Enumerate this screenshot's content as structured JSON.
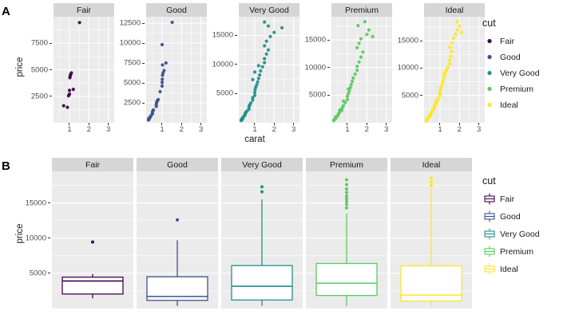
{
  "chart_data": {
    "colors": {
      "Fair": "#440154",
      "Good": "#3B528B",
      "Very Good": "#21908C",
      "Premium": "#5DC863",
      "Ideal": "#FDE725"
    },
    "panel_a": {
      "label": "A",
      "type": "scatter",
      "xlabel": "carat",
      "ylabel": "price",
      "x_ticks": [
        1,
        2,
        3
      ],
      "x_minor": [
        0.5,
        1.5,
        2.5
      ],
      "x_domain": [
        0.18,
        3.3
      ],
      "facets": [
        {
          "cut": "Fair",
          "y_ticks": [
            2500,
            5000,
            7500
          ],
          "y_domain": [
            0,
            10000
          ],
          "points": [
            [
              0.7,
              1600
            ],
            [
              0.9,
              1450
            ],
            [
              0.95,
              2550
            ],
            [
              1.0,
              2700
            ],
            [
              1.0,
              3050
            ],
            [
              1.02,
              4250
            ],
            [
              1.04,
              4400
            ],
            [
              1.06,
              4550
            ],
            [
              1.1,
              4700
            ],
            [
              1.2,
              3150
            ],
            [
              1.52,
              9450
            ]
          ]
        },
        {
          "cut": "Good",
          "y_ticks": [
            2500,
            5000,
            7500,
            10000,
            12500
          ],
          "y_domain": [
            0,
            13300
          ],
          "points": [
            [
              0.3,
              350
            ],
            [
              0.31,
              450
            ],
            [
              0.32,
              550
            ],
            [
              0.33,
              420
            ],
            [
              0.35,
              600
            ],
            [
              0.4,
              720
            ],
            [
              0.42,
              850
            ],
            [
              0.5,
              1100
            ],
            [
              0.5,
              1300
            ],
            [
              0.52,
              1450
            ],
            [
              0.55,
              1600
            ],
            [
              0.7,
              2050
            ],
            [
              0.7,
              2300
            ],
            [
              0.72,
              2550
            ],
            [
              0.75,
              2750
            ],
            [
              0.8,
              2900
            ],
            [
              0.9,
              3900
            ],
            [
              1.0,
              4600
            ],
            [
              1.0,
              5050
            ],
            [
              1.01,
              5450
            ],
            [
              1.02,
              5950
            ],
            [
              1.05,
              6250
            ],
            [
              1.1,
              6550
            ],
            [
              1.02,
              7250
            ],
            [
              1.2,
              7500
            ],
            [
              1.0,
              9800
            ],
            [
              1.52,
              12600
            ]
          ]
        },
        {
          "cut": "Very Good",
          "y_ticks": [
            5000,
            10000,
            15000
          ],
          "y_domain": [
            0,
            18200
          ],
          "points": [
            [
              0.3,
              400
            ],
            [
              0.31,
              500
            ],
            [
              0.32,
              430
            ],
            [
              0.33,
              600
            ],
            [
              0.35,
              700
            ],
            [
              0.36,
              560
            ],
            [
              0.4,
              820
            ],
            [
              0.4,
              950
            ],
            [
              0.42,
              1060
            ],
            [
              0.5,
              1300
            ],
            [
              0.5,
              1500
            ],
            [
              0.52,
              1660
            ],
            [
              0.55,
              1800
            ],
            [
              0.6,
              2000
            ],
            [
              0.7,
              2300
            ],
            [
              0.7,
              2600
            ],
            [
              0.72,
              2900
            ],
            [
              0.75,
              3100
            ],
            [
              0.8,
              3400
            ],
            [
              0.9,
              3900
            ],
            [
              0.9,
              4300
            ],
            [
              1.0,
              4700
            ],
            [
              1.0,
              5200
            ],
            [
              1.02,
              5700
            ],
            [
              1.05,
              6100
            ],
            [
              1.1,
              6500
            ],
            [
              1.15,
              7000
            ],
            [
              1.2,
              7600
            ],
            [
              1.25,
              8200
            ],
            [
              1.3,
              8900
            ],
            [
              0.9,
              7400
            ],
            [
              1.0,
              8700
            ],
            [
              1.2,
              9800
            ],
            [
              1.4,
              9600
            ],
            [
              1.5,
              10300
            ],
            [
              1.5,
              11000
            ],
            [
              1.6,
              11800
            ],
            [
              1.7,
              12500
            ],
            [
              1.5,
              13200
            ],
            [
              1.6,
              14000
            ],
            [
              1.8,
              14800
            ],
            [
              2.0,
              15500
            ],
            [
              2.4,
              16300
            ],
            [
              1.7,
              16600
            ],
            [
              1.5,
              17300
            ]
          ]
        },
        {
          "cut": "Premium",
          "y_ticks": [
            5000,
            10000,
            15000
          ],
          "y_domain": [
            0,
            19200
          ],
          "points": [
            [
              0.3,
              400
            ],
            [
              0.32,
              520
            ],
            [
              0.35,
              650
            ],
            [
              0.4,
              800
            ],
            [
              0.42,
              950
            ],
            [
              0.5,
              1200
            ],
            [
              0.52,
              1400
            ],
            [
              0.55,
              1650
            ],
            [
              0.6,
              1900
            ],
            [
              0.7,
              2200
            ],
            [
              0.72,
              2500
            ],
            [
              0.75,
              2800
            ],
            [
              0.8,
              3100
            ],
            [
              0.9,
              3650
            ],
            [
              1.0,
              4200
            ],
            [
              1.0,
              4800
            ],
            [
              1.05,
              5300
            ],
            [
              1.1,
              5800
            ],
            [
              1.15,
              6350
            ],
            [
              1.2,
              6900
            ],
            [
              1.25,
              7500
            ],
            [
              1.3,
              8100
            ],
            [
              1.4,
              8800
            ],
            [
              1.5,
              9500
            ],
            [
              1.5,
              10200
            ],
            [
              1.6,
              11000
            ],
            [
              1.7,
              11900
            ],
            [
              1.8,
              12800
            ],
            [
              1.5,
              13600
            ],
            [
              1.6,
              14400
            ],
            [
              1.7,
              15200
            ],
            [
              2.0,
              16000
            ],
            [
              2.1,
              16800
            ],
            [
              1.55,
              17600
            ],
            [
              1.9,
              18300
            ],
            [
              0.4,
              1050
            ],
            [
              0.6,
              2300
            ],
            [
              0.8,
              3900
            ],
            [
              1.05,
              6100
            ],
            [
              2.3,
              15600
            ]
          ]
        },
        {
          "cut": "Ideal",
          "y_ticks": [
            5000,
            10000,
            15000
          ],
          "y_domain": [
            0,
            19400
          ],
          "points": [
            [
              0.3,
              420
            ],
            [
              0.31,
              520
            ],
            [
              0.32,
              600
            ],
            [
              0.33,
              450
            ],
            [
              0.35,
              700
            ],
            [
              0.38,
              800
            ],
            [
              0.4,
              900
            ],
            [
              0.42,
              1000
            ],
            [
              0.5,
              1250
            ],
            [
              0.5,
              1450
            ],
            [
              0.52,
              1600
            ],
            [
              0.55,
              1800
            ],
            [
              0.6,
              2100
            ],
            [
              0.7,
              2500
            ],
            [
              0.7,
              2800
            ],
            [
              0.72,
              3000
            ],
            [
              0.75,
              3300
            ],
            [
              0.8,
              3600
            ],
            [
              0.9,
              4100
            ],
            [
              0.9,
              4500
            ],
            [
              1.0,
              5000
            ],
            [
              1.0,
              5500
            ],
            [
              1.02,
              6000
            ],
            [
              1.05,
              6500
            ],
            [
              1.1,
              7000
            ],
            [
              1.15,
              7600
            ],
            [
              1.2,
              8200
            ],
            [
              1.25,
              8800
            ],
            [
              1.3,
              9400
            ],
            [
              1.4,
              10100
            ],
            [
              1.5,
              10800
            ],
            [
              1.5,
              11500
            ],
            [
              1.55,
              12200
            ],
            [
              1.6,
              13000
            ],
            [
              1.5,
              13800
            ],
            [
              1.6,
              14600
            ],
            [
              1.7,
              15400
            ],
            [
              1.8,
              16200
            ],
            [
              1.9,
              17000
            ],
            [
              2.0,
              17700
            ],
            [
              1.9,
              18500
            ],
            [
              0.4,
              1100
            ],
            [
              0.6,
              2300
            ],
            [
              0.8,
              3900
            ],
            [
              1.05,
              6200
            ],
            [
              1.2,
              9000
            ],
            [
              2.1,
              16500
            ],
            [
              1.35,
              9800
            ]
          ]
        }
      ]
    },
    "legend_a": {
      "title": "cut",
      "items": [
        "Fair",
        "Good",
        "Very Good",
        "Premium",
        "Ideal"
      ]
    },
    "panel_b": {
      "label": "B",
      "type": "box",
      "ylabel": "price",
      "y_ticks": [
        5000,
        10000,
        15000
      ],
      "y_domain": [
        0,
        19500
      ],
      "facets": [
        {
          "cut": "Fair",
          "stats": {
            "low": 1450,
            "q1": 2050,
            "median": 3900,
            "q3": 4450,
            "high": 4900
          },
          "outliers": [
            9450
          ]
        },
        {
          "cut": "Good",
          "stats": {
            "low": 350,
            "q1": 1150,
            "median": 1700,
            "q3": 4500,
            "high": 9700
          },
          "outliers": [
            12600
          ]
        },
        {
          "cut": "Very Good",
          "stats": {
            "low": 350,
            "q1": 1200,
            "median": 3150,
            "q3": 6100,
            "high": 15500
          },
          "outliers": [
            16600,
            17300
          ]
        },
        {
          "cut": "Premium",
          "stats": {
            "low": 350,
            "q1": 1850,
            "median": 3600,
            "q3": 6400,
            "high": 13500
          },
          "outliers": [
            14300,
            14800,
            15200,
            15600,
            16000,
            16500,
            17000,
            17600,
            18300
          ]
        },
        {
          "cut": "Ideal",
          "stats": {
            "low": 350,
            "q1": 1050,
            "median": 1900,
            "q3": 6050,
            "high": 17000
          },
          "outliers": [
            17500,
            18000,
            18500
          ]
        }
      ]
    },
    "legend_b": {
      "title": "cut",
      "items": [
        "Fair",
        "Good",
        "Very Good",
        "Premium",
        "Ideal"
      ]
    }
  }
}
